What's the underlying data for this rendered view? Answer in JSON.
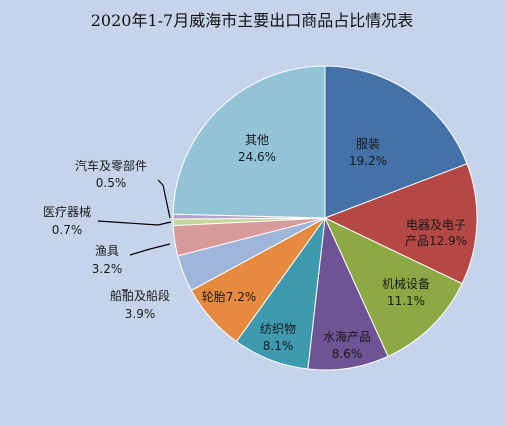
{
  "chart_data": {
    "type": "pie",
    "title": "2020年1-7月威海市主要出口商品占比情况表",
    "start_angle_deg": 0,
    "direction": "clockwise",
    "colors": [
      "#4472a8",
      "#b54744",
      "#8da944",
      "#6e5494",
      "#3e9aae",
      "#e58a3e",
      "#9fb5d9",
      "#d99b9a",
      "#c3d69b",
      "#b3a2c7",
      "#93c4d6"
    ],
    "slices": [
      {
        "name": "服装",
        "value": 19.2,
        "pct_label": "19.2%"
      },
      {
        "name": "电器及电子产品",
        "value": 12.9,
        "pct_label": "12.9%"
      },
      {
        "name": "机械设备",
        "value": 11.1,
        "pct_label": "11.1%"
      },
      {
        "name": "水海产品",
        "value": 8.6,
        "pct_label": "8.6%"
      },
      {
        "name": "纺织物",
        "value": 8.1,
        "pct_label": "8.1%"
      },
      {
        "name": "轮胎",
        "value": 7.2,
        "pct_label": "7.2%"
      },
      {
        "name": "船舶及船段",
        "value": 3.9,
        "pct_label": "3.9%"
      },
      {
        "name": "渔具",
        "value": 3.2,
        "pct_label": "3.2%"
      },
      {
        "name": "医疗器械",
        "value": 0.7,
        "pct_label": "0.7%"
      },
      {
        "name": "汽车及零部件",
        "value": 0.5,
        "pct_label": "0.5%"
      },
      {
        "name": "其他",
        "value": 24.6,
        "pct_label": "24.6%"
      }
    ]
  }
}
